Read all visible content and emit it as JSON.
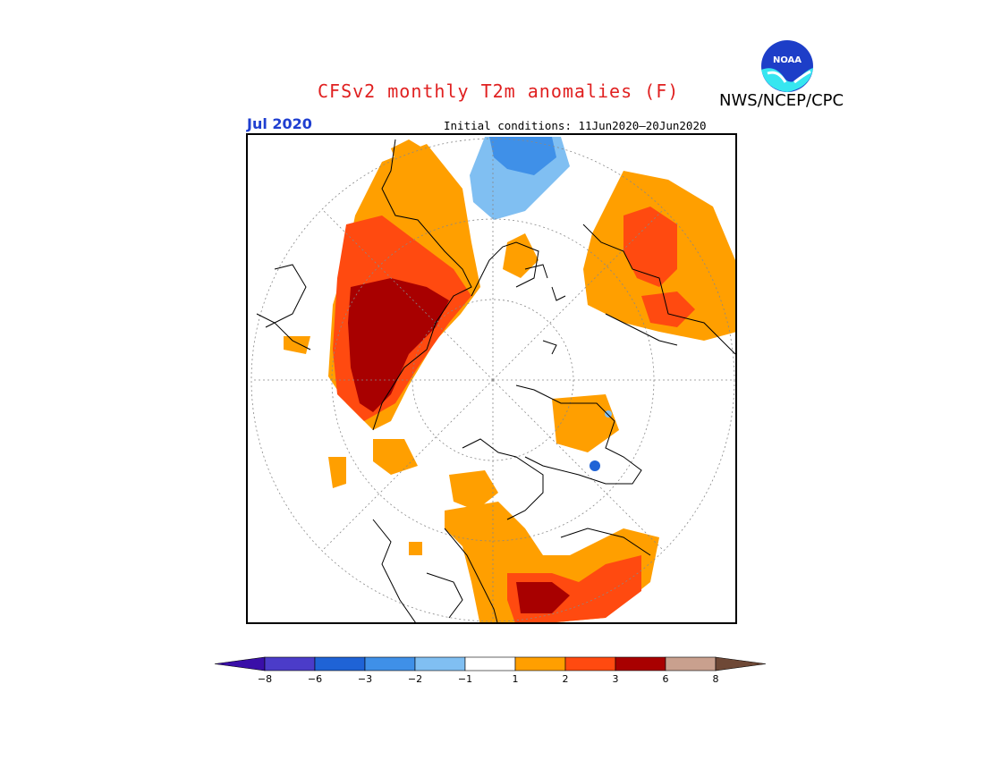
{
  "header": {
    "title": "CFSv2 monthly T2m anomalies (F)",
    "agency": "NWS/NCEP/CPC",
    "logo_text": "NOAA",
    "month": "Jul 2020",
    "initial_conditions": "Initial conditions: 11Jun2020–20Jun2020"
  },
  "legend": {
    "ticks": [
      "−8",
      "−6",
      "−3",
      "−2",
      "−1",
      "1",
      "2",
      "3",
      "6",
      "8"
    ],
    "colors": [
      "#3a0fa8",
      "#4b3cc9",
      "#1f63d6",
      "#3f90e8",
      "#80bff2",
      "#ffffff",
      "#ff9f00",
      "#ff4a10",
      "#a80000",
      "#c9a08e",
      "#6e4836"
    ]
  },
  "map": {
    "projection": "north polar stereographic",
    "colors": {
      "pos1": "#ff9f00",
      "pos2": "#ff4a10",
      "pos3": "#a80000",
      "neg1": "#80bff2",
      "neg2": "#3f90e8",
      "neg3": "#1f63d6"
    }
  }
}
